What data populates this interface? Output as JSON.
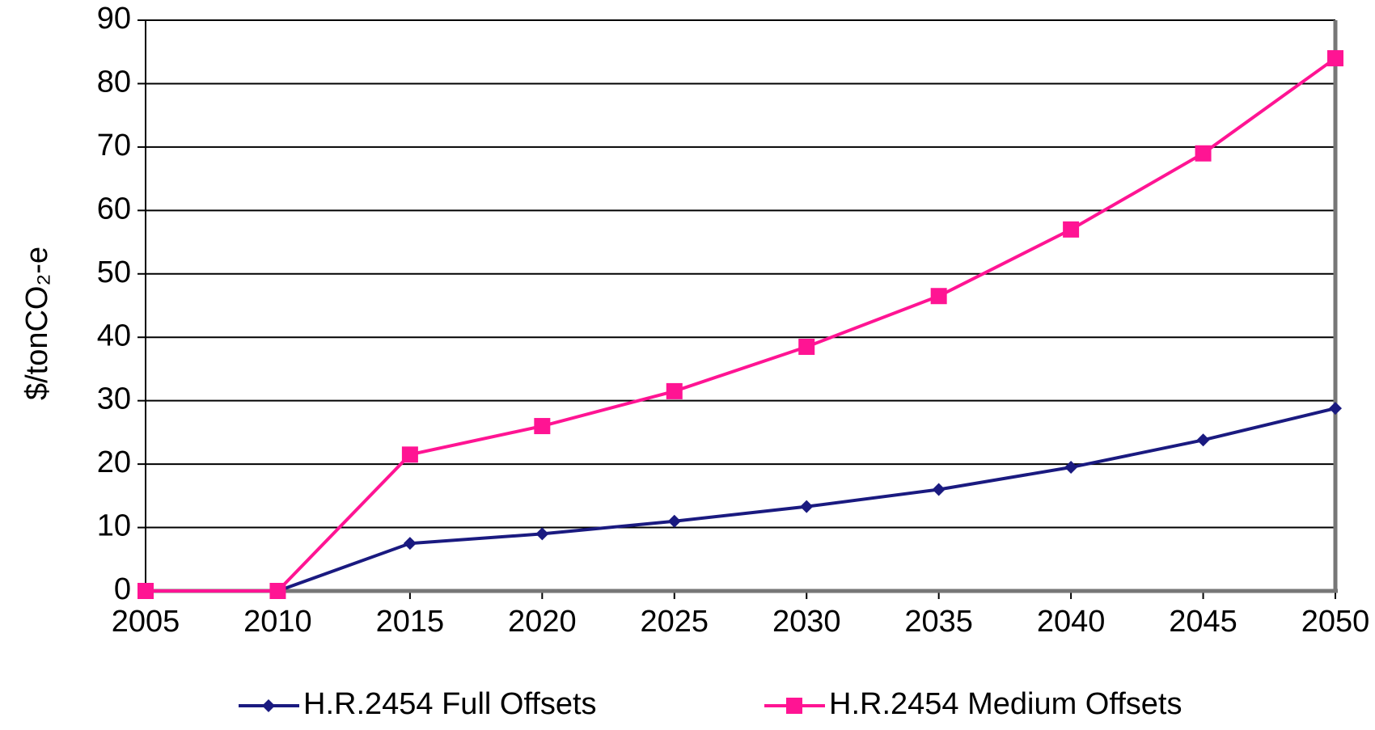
{
  "chart_data": {
    "type": "line",
    "y_label": "$/tonCO₂-e",
    "x": [
      2005,
      2010,
      2015,
      2020,
      2025,
      2030,
      2035,
      2040,
      2045,
      2050
    ],
    "series": [
      {
        "name": "H.R.2454 Full Offsets",
        "color": "#1a1a80",
        "marker": "diamond",
        "values": [
          0,
          0,
          7.5,
          9,
          11,
          13.3,
          16,
          19.5,
          23.8,
          28.8
        ]
      },
      {
        "name": "H.R.2454 Medium Offsets",
        "color": "#ff1493",
        "marker": "square",
        "values": [
          0,
          0,
          21.5,
          26,
          31.5,
          38.5,
          46.5,
          57,
          69,
          84
        ]
      }
    ],
    "xlim": [
      2005,
      2050
    ],
    "xticks": [
      2005,
      2010,
      2015,
      2020,
      2025,
      2030,
      2035,
      2040,
      2045,
      2050
    ],
    "ylim": [
      0,
      90
    ],
    "yticks": [
      0,
      10,
      20,
      30,
      40,
      50,
      60,
      70,
      80,
      90
    ],
    "grid": true,
    "legend": "bottom"
  }
}
